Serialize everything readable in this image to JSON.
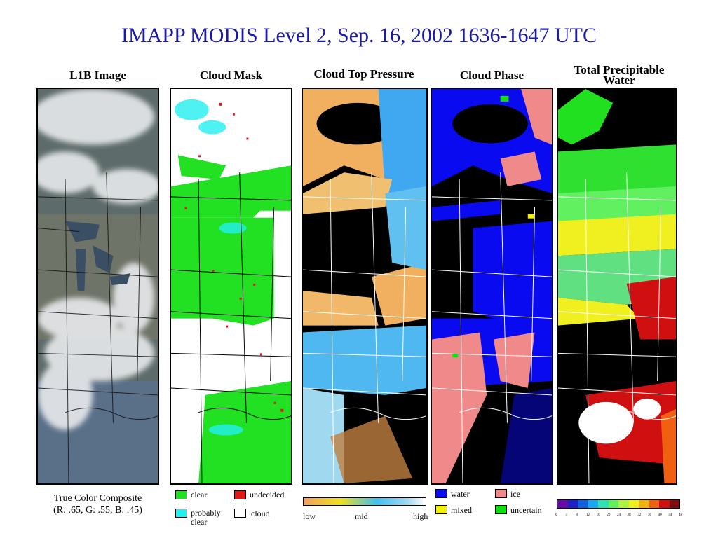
{
  "title": "IMAPP MODIS Level 2, Sep. 16, 2002 1636-1647 UTC",
  "panels": [
    {
      "title": "L1B Image"
    },
    {
      "title": "Cloud Mask"
    },
    {
      "title": "Cloud Top Pressure"
    },
    {
      "title": "Cloud Phase"
    },
    {
      "title": "Total Precipitable Water"
    }
  ],
  "l1b_caption": {
    "line1": "True Color Composite",
    "line2": "(R: .65, G: .55, B: .45)"
  },
  "cloud_mask_legend": {
    "clear": "clear",
    "undecided": "undecided",
    "probably_clear": "probably clear",
    "cloud": "cloud",
    "colors": {
      "clear": "#22e022",
      "undecided": "#e01818",
      "probably_clear": "#22f0f0",
      "cloud": "#ffffff"
    }
  },
  "ctp_legend": {
    "low": "low",
    "mid": "mid",
    "high": "high"
  },
  "phase_legend": {
    "water": "water",
    "ice": "ice",
    "mixed": "mixed",
    "uncertain": "uncertain",
    "colors": {
      "water": "#0a0af0",
      "ice": "#f08a8a",
      "mixed": "#f0f000",
      "uncertain": "#10e010"
    }
  },
  "tpw_legend": {
    "ticks": [
      "0",
      "4",
      "8",
      "12",
      "16",
      "20",
      "24",
      "28",
      "32",
      "36",
      "40",
      "44",
      "48"
    ],
    "colors": [
      "#6a0aa8",
      "#2020c8",
      "#1060e0",
      "#18a8f0",
      "#30e0b0",
      "#60f060",
      "#b0f040",
      "#f0f020",
      "#f0b010",
      "#f06010",
      "#d01010",
      "#801010"
    ]
  }
}
